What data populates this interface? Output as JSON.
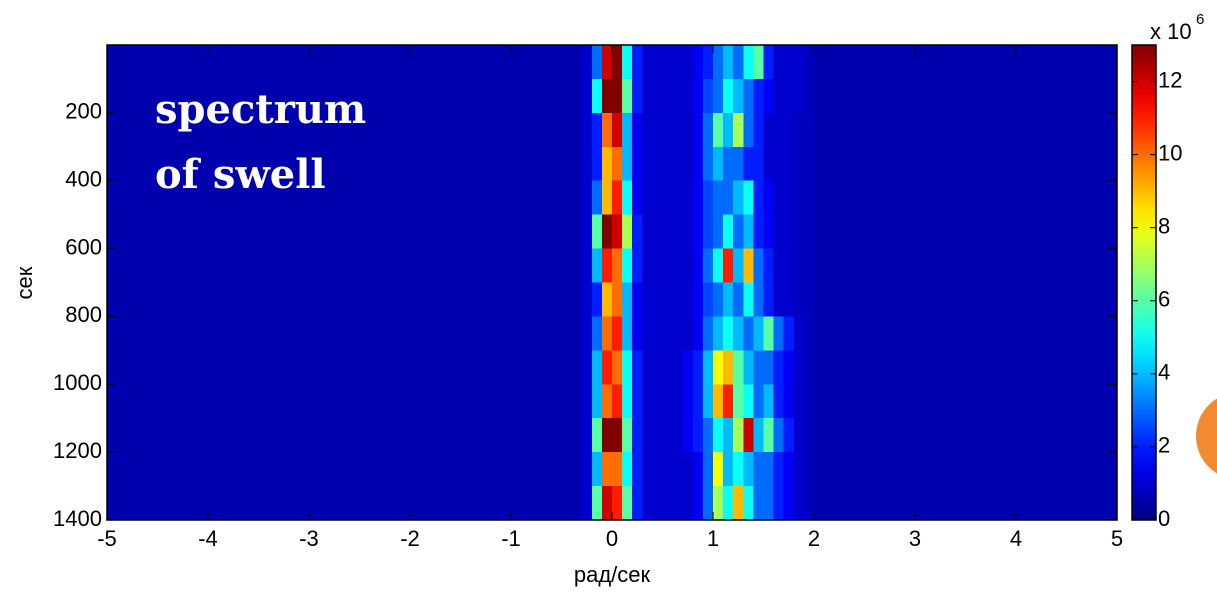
{
  "chart_data": {
    "type": "heatmap",
    "xlabel": "рад/сек",
    "ylabel": "сек",
    "annotations": [
      "spectrum",
      "of swell"
    ],
    "xlim": [
      -5,
      5
    ],
    "xticks": [
      -5,
      -4,
      -3,
      -2,
      -1,
      0,
      1,
      2,
      3,
      4,
      5
    ],
    "ylim": [
      0,
      1400
    ],
    "y_reversed": true,
    "yticks": [
      200,
      400,
      600,
      800,
      1000,
      1200,
      1400
    ],
    "xbins": [
      -5,
      -0.3,
      -0.2,
      -0.1,
      0,
      0.1,
      0.2,
      0.3,
      0.4,
      0.5,
      0.6,
      0.7,
      0.8,
      0.9,
      1.0,
      1.1,
      1.2,
      1.3,
      1.4,
      1.5,
      1.6,
      1.7,
      1.8,
      1.9,
      2.0,
      5
    ],
    "ybins": [
      0,
      100,
      200,
      300,
      400,
      500,
      600,
      700,
      800,
      900,
      1000,
      1100,
      1200,
      1300,
      1400
    ],
    "z": [
      [
        0.6,
        1,
        3,
        12,
        13,
        5,
        2,
        1,
        1,
        1,
        1,
        1,
        1.5,
        2,
        3,
        4,
        3,
        5,
        6,
        2,
        1,
        1,
        1,
        0.8,
        0.6
      ],
      [
        0.6,
        1,
        5,
        13,
        13,
        6,
        2,
        1,
        1,
        1,
        1,
        1,
        1.5,
        2.5,
        3,
        5,
        4,
        3,
        2,
        1.5,
        1,
        1,
        1,
        0.8,
        0.6
      ],
      [
        0.6,
        1,
        2,
        10,
        12,
        4,
        1.5,
        1,
        1,
        1,
        1,
        1,
        1.5,
        3,
        6,
        4,
        7,
        3,
        2,
        1,
        1,
        1,
        0.8,
        0.8,
        0.6
      ],
      [
        0.6,
        1,
        2,
        9,
        10,
        4,
        1.5,
        1,
        1,
        1,
        1,
        1,
        1.5,
        3,
        4,
        3,
        3,
        2,
        2,
        1,
        1,
        1,
        0.8,
        0.8,
        0.6
      ],
      [
        0.6,
        1,
        3,
        9,
        11,
        5,
        1.5,
        1,
        1,
        1,
        1,
        1,
        1.5,
        2.5,
        3,
        3,
        4,
        5,
        2,
        1.5,
        1,
        1,
        0.8,
        0.8,
        0.6
      ],
      [
        0.6,
        1,
        6,
        13,
        12,
        7,
        2,
        1,
        1,
        1,
        1,
        1,
        1.5,
        2.5,
        3,
        5,
        3,
        4,
        2,
        1.5,
        1,
        1,
        0.8,
        0.8,
        0.6
      ],
      [
        0.6,
        1,
        4,
        11,
        10,
        5,
        2,
        1,
        1,
        1,
        1,
        1,
        1.5,
        3,
        5,
        11,
        4,
        9,
        3,
        2,
        1,
        1,
        0.8,
        0.8,
        0.6
      ],
      [
        0.6,
        1,
        2,
        9,
        10,
        4,
        1.5,
        1,
        1,
        1,
        1,
        1,
        1.5,
        2.5,
        3,
        4,
        3,
        5,
        3,
        2,
        1,
        1,
        0.8,
        0.8,
        0.6
      ],
      [
        0.6,
        1,
        3,
        10,
        11,
        4,
        1.5,
        1,
        1,
        1,
        1,
        1,
        1.5,
        3,
        4,
        5,
        4,
        3,
        4,
        6,
        3,
        2,
        1,
        0.8,
        0.6
      ],
      [
        0.6,
        1,
        4,
        11,
        10,
        5,
        2,
        1,
        1,
        1,
        1,
        1.5,
        2,
        4,
        8,
        9,
        6,
        4,
        3,
        3,
        2,
        1.5,
        1,
        0.8,
        0.6
      ],
      [
        0.6,
        1,
        4,
        10,
        11,
        5,
        2,
        1,
        1,
        1,
        1,
        1.5,
        2,
        4,
        9,
        11,
        6,
        5,
        3,
        4,
        2,
        1.5,
        1,
        0.8,
        0.6
      ],
      [
        0.6,
        1,
        6,
        13,
        13,
        6,
        2,
        1,
        1,
        1,
        1,
        1.5,
        2,
        3,
        5,
        4,
        7,
        12,
        4,
        6,
        3,
        2,
        1,
        0.8,
        0.6
      ],
      [
        0.6,
        1,
        4,
        10,
        10,
        5,
        2,
        1,
        1,
        1,
        1,
        1,
        1.5,
        3,
        8,
        4,
        5,
        4,
        3,
        3,
        2,
        1.5,
        1,
        0.8,
        0.6
      ],
      [
        0.6,
        1,
        6,
        12,
        11,
        6,
        2,
        1,
        1,
        1,
        1,
        1,
        1.5,
        3,
        7,
        5,
        9,
        5,
        3,
        3,
        2,
        1.5,
        1,
        0.8,
        0.6
      ]
    ],
    "colormap": "jet",
    "clim": [
      0,
      13
    ],
    "cticks": [
      0,
      2,
      4,
      6,
      8,
      10,
      12
    ],
    "colorbar_label": "x 10",
    "colorbar_exponent": "6"
  }
}
